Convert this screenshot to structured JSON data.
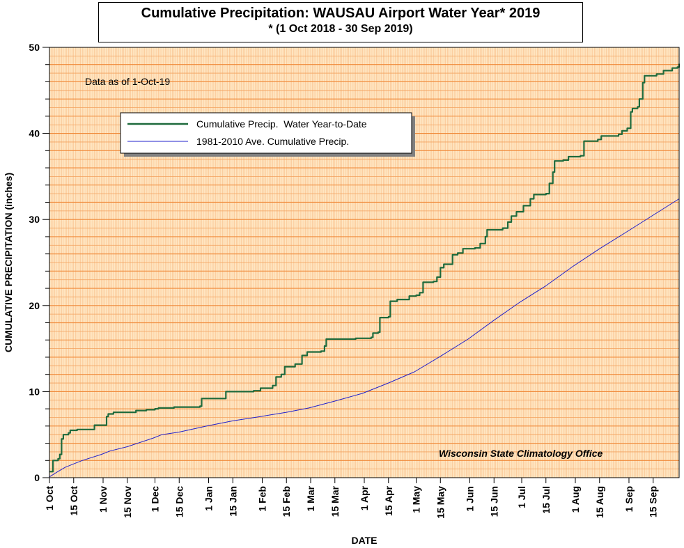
{
  "chart_data": {
    "type": "line",
    "title": "Cumulative Precipitation: WAUSAU Airport Water Year* 2019",
    "subtitle": "* (1 Oct 2018 - 30 Sep 2019)",
    "xlabel": "DATE",
    "ylabel": "CUMULATIVE PRECIPITATION (inches)",
    "ylim": [
      0,
      50
    ],
    "xlim": [
      "2018-10-01",
      "2019-09-30"
    ],
    "y_ticks": [
      "0",
      "10",
      "20",
      "30",
      "40",
      "50"
    ],
    "x_ticks": [
      {
        "label": "1 Oct",
        "date": "2018-10-01"
      },
      {
        "label": "15 Oct",
        "date": "2018-10-15"
      },
      {
        "label": "1 Nov",
        "date": "2018-11-01"
      },
      {
        "label": "15 Nov",
        "date": "2018-11-15"
      },
      {
        "label": "1 Dec",
        "date": "2018-12-01"
      },
      {
        "label": "15 Dec",
        "date": "2018-12-15"
      },
      {
        "label": "1 Jan",
        "date": "2019-01-01"
      },
      {
        "label": "15 Jan",
        "date": "2019-01-15"
      },
      {
        "label": "1 Feb",
        "date": "2019-02-01"
      },
      {
        "label": "15 Feb",
        "date": "2019-02-15"
      },
      {
        "label": "1 Mar",
        "date": "2019-03-01"
      },
      {
        "label": "15 Mar",
        "date": "2019-03-15"
      },
      {
        "label": "1 Apr",
        "date": "2019-04-01"
      },
      {
        "label": "15 Apr",
        "date": "2019-04-15"
      },
      {
        "label": "1 May",
        "date": "2019-05-01"
      },
      {
        "label": "15 May",
        "date": "2019-05-15"
      },
      {
        "label": "1 Jun",
        "date": "2019-06-01"
      },
      {
        "label": "15 Jun",
        "date": "2019-06-15"
      },
      {
        "label": "1 Jul",
        "date": "2019-07-01"
      },
      {
        "label": "15 Jul",
        "date": "2019-07-15"
      },
      {
        "label": "1 Aug",
        "date": "2019-08-01"
      },
      {
        "label": "15 Aug",
        "date": "2019-08-15"
      },
      {
        "label": "1 Sep",
        "date": "2019-09-01"
      },
      {
        "label": "15 Sep",
        "date": "2019-09-15"
      }
    ],
    "grid": true,
    "legend_position": "top-left",
    "annotations": {
      "data_as_of": "Data as of 1-Oct-19",
      "source": "Wisconsin State Climatology Office"
    },
    "colors": {
      "background": "#ffe6c2",
      "major_grid": "#f08a3a",
      "minor_grid": "#f3a05c",
      "actual_line": "#1e6a3c",
      "average_line": "#2020cc"
    },
    "series": [
      {
        "name": "Cumulative Precip.  Water Year-to-Date",
        "points": [
          [
            "2018-10-01",
            0.7
          ],
          [
            "2018-10-02",
            0.7
          ],
          [
            "2018-10-03",
            2.0
          ],
          [
            "2018-10-06",
            2.2
          ],
          [
            "2018-10-07",
            2.7
          ],
          [
            "2018-10-08",
            4.5
          ],
          [
            "2018-10-09",
            5.0
          ],
          [
            "2018-10-12",
            5.2
          ],
          [
            "2018-10-13",
            5.5
          ],
          [
            "2018-10-17",
            5.6
          ],
          [
            "2018-10-26",
            5.6
          ],
          [
            "2018-10-27",
            6.1
          ],
          [
            "2018-11-02",
            6.1
          ],
          [
            "2018-11-03",
            7.1
          ],
          [
            "2018-11-04",
            7.4
          ],
          [
            "2018-11-07",
            7.6
          ],
          [
            "2018-11-20",
            7.8
          ],
          [
            "2018-11-26",
            7.9
          ],
          [
            "2018-12-01",
            8.0
          ],
          [
            "2018-12-03",
            8.1
          ],
          [
            "2018-12-12",
            8.2
          ],
          [
            "2018-12-27",
            8.3
          ],
          [
            "2018-12-28",
            9.2
          ],
          [
            "2019-01-10",
            9.2
          ],
          [
            "2019-01-11",
            10.0
          ],
          [
            "2019-01-27",
            10.1
          ],
          [
            "2019-01-31",
            10.4
          ],
          [
            "2019-02-07",
            10.7
          ],
          [
            "2019-02-09",
            11.7
          ],
          [
            "2019-02-12",
            12.0
          ],
          [
            "2019-02-14",
            12.9
          ],
          [
            "2019-02-20",
            13.2
          ],
          [
            "2019-02-24",
            14.2
          ],
          [
            "2019-02-27",
            14.6
          ],
          [
            "2019-03-07",
            14.7
          ],
          [
            "2019-03-09",
            15.3
          ],
          [
            "2019-03-10",
            16.1
          ],
          [
            "2019-03-27",
            16.2
          ],
          [
            "2019-04-05",
            16.3
          ],
          [
            "2019-04-06",
            16.8
          ],
          [
            "2019-04-09",
            16.9
          ],
          [
            "2019-04-10",
            18.6
          ],
          [
            "2019-04-15",
            18.7
          ],
          [
            "2019-04-16",
            20.5
          ],
          [
            "2019-04-20",
            20.7
          ],
          [
            "2019-04-27",
            21.1
          ],
          [
            "2019-05-01",
            21.2
          ],
          [
            "2019-05-03",
            21.5
          ],
          [
            "2019-05-05",
            22.7
          ],
          [
            "2019-05-11",
            22.8
          ],
          [
            "2019-05-13",
            23.3
          ],
          [
            "2019-05-15",
            24.4
          ],
          [
            "2019-05-17",
            24.8
          ],
          [
            "2019-05-22",
            25.9
          ],
          [
            "2019-05-25",
            26.1
          ],
          [
            "2019-05-28",
            26.6
          ],
          [
            "2019-06-04",
            26.7
          ],
          [
            "2019-06-07",
            27.2
          ],
          [
            "2019-06-10",
            28.0
          ],
          [
            "2019-06-11",
            28.8
          ],
          [
            "2019-06-20",
            29.0
          ],
          [
            "2019-06-23",
            29.7
          ],
          [
            "2019-06-25",
            30.4
          ],
          [
            "2019-06-28",
            30.9
          ],
          [
            "2019-07-02",
            31.6
          ],
          [
            "2019-07-06",
            32.4
          ],
          [
            "2019-07-08",
            32.9
          ],
          [
            "2019-07-15",
            33.0
          ],
          [
            "2019-07-17",
            34.2
          ],
          [
            "2019-07-19",
            35.5
          ],
          [
            "2019-07-20",
            36.8
          ],
          [
            "2019-07-25",
            36.9
          ],
          [
            "2019-07-28",
            37.3
          ],
          [
            "2019-08-04",
            37.4
          ],
          [
            "2019-08-06",
            39.1
          ],
          [
            "2019-08-14",
            39.3
          ],
          [
            "2019-08-16",
            39.7
          ],
          [
            "2019-08-26",
            39.9
          ],
          [
            "2019-08-28",
            40.3
          ],
          [
            "2019-08-31",
            40.6
          ],
          [
            "2019-09-02",
            42.5
          ],
          [
            "2019-09-03",
            42.9
          ],
          [
            "2019-09-06",
            43.1
          ],
          [
            "2019-09-07",
            44.0
          ],
          [
            "2019-09-09",
            45.9
          ],
          [
            "2019-09-10",
            46.7
          ],
          [
            "2019-09-17",
            46.9
          ],
          [
            "2019-09-21",
            47.3
          ],
          [
            "2019-09-26",
            47.6
          ],
          [
            "2019-09-29",
            47.7
          ],
          [
            "2019-09-30",
            48.1
          ]
        ]
      },
      {
        "name": "1981-2010 Ave. Cumulative Precip.",
        "points": [
          [
            "2018-10-01",
            0.1
          ],
          [
            "2018-10-05",
            0.6
          ],
          [
            "2018-10-10",
            1.2
          ],
          [
            "2018-10-15",
            1.6
          ],
          [
            "2018-10-20",
            2.0
          ],
          [
            "2018-10-31",
            2.7
          ],
          [
            "2018-11-05",
            3.1
          ],
          [
            "2018-11-15",
            3.6
          ],
          [
            "2018-11-30",
            4.6
          ],
          [
            "2018-12-05",
            5.0
          ],
          [
            "2018-12-15",
            5.3
          ],
          [
            "2018-12-31",
            6.0
          ],
          [
            "2019-01-15",
            6.6
          ],
          [
            "2019-01-31",
            7.1
          ],
          [
            "2019-02-15",
            7.6
          ],
          [
            "2019-02-28",
            8.1
          ],
          [
            "2019-03-15",
            8.9
          ],
          [
            "2019-03-31",
            9.8
          ],
          [
            "2019-04-15",
            11.0
          ],
          [
            "2019-04-30",
            12.3
          ],
          [
            "2019-05-15",
            14.1
          ],
          [
            "2019-05-31",
            16.1
          ],
          [
            "2019-06-15",
            18.3
          ],
          [
            "2019-06-30",
            20.4
          ],
          [
            "2019-07-15",
            22.3
          ],
          [
            "2019-07-31",
            24.6
          ],
          [
            "2019-08-15",
            26.6
          ],
          [
            "2019-08-31",
            28.6
          ],
          [
            "2019-09-15",
            30.5
          ],
          [
            "2019-09-30",
            32.4
          ]
        ]
      }
    ]
  }
}
